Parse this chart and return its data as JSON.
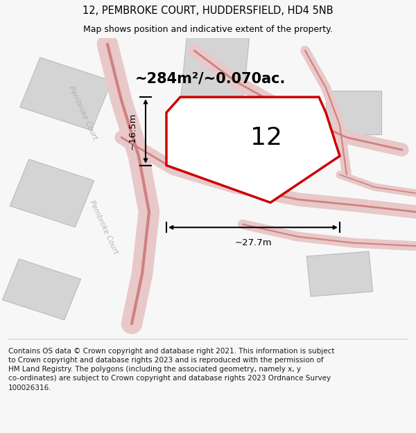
{
  "title": "12, PEMBROKE COURT, HUDDERSFIELD, HD4 5NB",
  "subtitle": "Map shows position and indicative extent of the property.",
  "footer": "Contains OS data © Crown copyright and database right 2021. This information is subject\nto Crown copyright and database rights 2023 and is reproduced with the permission of\nHM Land Registry. The polygons (including the associated geometry, namely x, y\nco-ordinates) are subject to Crown copyright and database rights 2023 Ordnance Survey\n100026316.",
  "area_label": "~284m²/~0.070ac.",
  "property_number": "12",
  "dim_width": "~27.7m",
  "dim_height": "~16.5m",
  "bg_color": "#f7f7f7",
  "map_bg": "#f0f0f0",
  "building_color": "#d4d4d4",
  "building_edge": "#bbbbbb",
  "property_fill": "#ffffff",
  "property_edge": "#cc0000",
  "title_fontsize": 10.5,
  "subtitle_fontsize": 9,
  "footer_fontsize": 7.5,
  "road_fill": "#e8c8c8",
  "road_edge": "#d08080",
  "street_label_color": "#aaaaaa"
}
